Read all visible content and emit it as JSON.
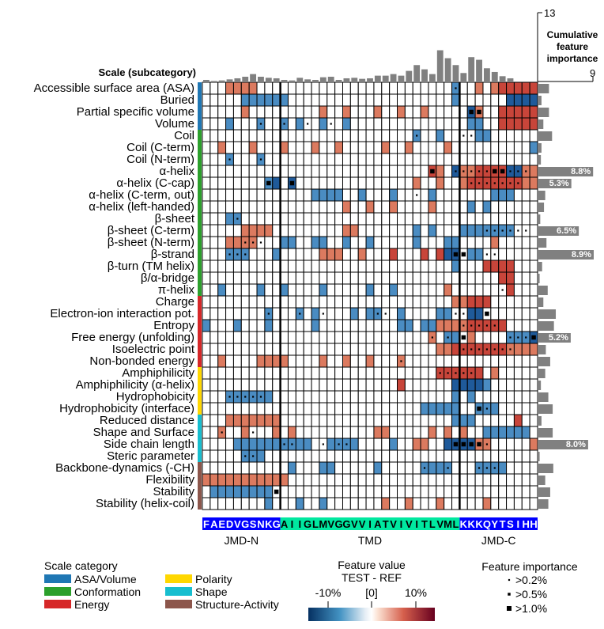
{
  "chart_data": {
    "type": "heatmap",
    "title": "",
    "scale_header": "Scale (subcategory)",
    "importance_axis": {
      "title_lines": [
        "Cumulative",
        "feature",
        "importance"
      ],
      "top_tick": "13",
      "bottom_tick": "9",
      "max": 13
    },
    "categories": [
      {
        "name": "ASA/Volume",
        "color": "#1f77b4"
      },
      {
        "name": "Conformation",
        "color": "#2ca02c"
      },
      {
        "name": "Energy",
        "color": "#d62728"
      },
      {
        "name": "Polarity",
        "color": "#ffd700"
      },
      {
        "name": "Shape",
        "color": "#17becf"
      },
      {
        "name": "Structure-Activity",
        "color": "#8c564b"
      }
    ],
    "rows": [
      {
        "label": "Accessible surface area (ASA)",
        "cat": 0,
        "imp": 1.7,
        "imp_label": "",
        "cells": "...PPPP.........................B..P.PRRRRRX..PR.",
        "marks": "................................1..........111111.."
      },
      {
        "label": "Buried",
        "cat": 0,
        "imp": 0.5,
        "imp_label": "",
        "cells": ".....BBBBBB.....................B......XXXXXXB..B.",
        "marks": ".................................................."
      },
      {
        "label": "Partial specific volume",
        "cat": 0,
        "imp": 1.7,
        "imp_label": "",
        "cells": ".....P.........P..P...P..P..P.....XP..RRRRR.......",
        "marks": "..................................33............."
      },
      {
        "label": "Volume",
        "cat": 0,
        "imp": 0.8,
        "imp_label": "",
        "cells": "...B...B..B.B..B..B...............BB..RRRRR.......",
        "marks": ".......1..1..1..1................................."
      },
      {
        "label": "Coil",
        "cat": 1,
        "imp": 2.2,
        "imp_label": "",
        "cells": "...........................B..B....BB.............",
        "marks": "...........................1.....11..............."
      },
      {
        "label": "Coil (C-term)",
        "cat": 1,
        "imp": 0.5,
        "imp_label": "",
        "cells": "..P...P...P...P..P.....P..P....P..........B...B...B.",
        "marks": ".................................................."
      },
      {
        "label": "Coil (N-term)",
        "cat": 1,
        "imp": 0.4,
        "imp_label": "",
        "cells": "...B...B.........................................",
        "marks": "...1...1.........................................."
      },
      {
        "label": "α-helix",
        "cat": 1,
        "imp": 8.8,
        "imp_label": "8.8%",
        "cells": ".............................RP.XPPRRRRXXPP.......",
        "marks": ".............................3..1111133111........"
      },
      {
        "label": "α-helix (C-cap)",
        "cat": 1,
        "imp": 5.3,
        "imp_label": "5.3%",
        "cells": "........BX.X...............P..P..PRRRRRRRPPPPP.....",
        "marks": "........3..3......................1111111.......1.."
      },
      {
        "label": "α-helix (C-term, out)",
        "cat": 1,
        "imp": 1.1,
        "imp_label": "",
        "cells": "..............BBBB..B...B....B.......BBB..........",
        "marks": "...........................1......................"
      },
      {
        "label": "α-helix (left-handed)",
        "cat": 1,
        "imp": 0.9,
        "imp_label": "",
        "cells": "..................P..P..P....P....B.B...........",
        "marks": ".................................................."
      },
      {
        "label": "β-sheet",
        "cat": 1,
        "imp": 0.3,
        "imp_label": "",
        "cells": "...BB.............................................",
        "marks": "....1............................................."
      },
      {
        "label": "β-sheet (C-term)",
        "cat": 1,
        "imp": 6.5,
        "imp_label": "6.5%",
        "cells": ".....PPPP.........PP.......B.B...BBBBBBB..........",
        "marks": "....................................111111........"
      },
      {
        "label": "β-sheet (N-term)",
        "cat": 1,
        "imp": 1.3,
        "imp_label": "",
        "cells": "...PPPP...BB..BB..B..B.....B...BB....P.........",
        "marks": ".....111........................................."
      },
      {
        "label": "β-strand",
        "cat": 1,
        "imp": 8.9,
        "imp_label": "8.9%",
        "cells": "...BBB...B.....PPP..P...R...R.RXX.BB.........",
        "marks": "...111..........................33..11............"
      },
      {
        "label": "β-turn (TM helix)",
        "cat": 1,
        "imp": 0.6,
        "imp_label": "",
        "cells": "................................B...RRRR.....P...",
        "marks": ".............................................1...."
      },
      {
        "label": "β/α-bridge",
        "cat": 1,
        "imp": 0.2,
        "imp_label": "",
        "cells": "......................................RR........",
        "marks": ".................................................."
      },
      {
        "label": "π-helix",
        "cat": 1,
        "imp": 1.5,
        "imp_label": "",
        "cells": "..B....B..B....B.....B..B......P.......R..........",
        "marks": "......................................1..........."
      },
      {
        "label": "Charge",
        "cat": 2,
        "imp": 0.8,
        "imp_label": "",
        "cells": "................................PPRRR........",
        "marks": ".................................................."
      },
      {
        "label": "Electron-ion interaction pot.",
        "cat": 2,
        "imp": 2.8,
        "imp_label": "",
        "cells": "........B...B.B....B.BB..B....BB..XX..............",
        "marks": "........1...1..1......11........11..3.............."
      },
      {
        "label": "Entropy",
        "cat": 2,
        "imp": 2.5,
        "imp_label": "",
        "cells": "B...B...B.....B..........BB.BBPPPPRRRRR..........",
        "marks": ".................................11111............."
      },
      {
        "label": "Free energy (unfolding)",
        "cat": 2,
        "imp": 5.2,
        "imp_label": "5.2%",
        "cells": ".............................P.BB.P....BBBXB.....",
        "marks": ".............................1.1.3.....11131....."
      },
      {
        "label": "Isoelectric point",
        "cat": 2,
        "imp": 1.2,
        "imp_label": "",
        "cells": "..............................PPRRRRRRRPPPP.....",
        "marks": ".................................1111111........."
      },
      {
        "label": "Non-bonded energy",
        "cat": 2,
        "imp": 1.9,
        "imp_label": "",
        "cells": "..P....PPPP....P..P..P...P........................",
        "marks": ".........................1.........................."
      },
      {
        "label": "Amphiphilicity",
        "cat": 3,
        "imp": 1.1,
        "imp_label": "",
        "cells": "..............................RRRRRR.P.........",
        "marks": "..............................11111.............."
      },
      {
        "label": "Amphiphilicity (α-helix)",
        "cat": 3,
        "imp": 0.4,
        "imp_label": "",
        "cells": ".........................R......XXXXB.........",
        "marks": ".................................................."
      },
      {
        "label": "Hydrophobicity",
        "cat": 3,
        "imp": 1.6,
        "imp_label": "",
        "cells": "...BBBBBB.......................B.B........B...",
        "marks": "...11111......................................."
      },
      {
        "label": "Hydrophobicity (interface)",
        "cat": 3,
        "imp": 2.3,
        "imp_label": "",
        "cells": "............................BBBBB..BBB.......B...",
        "marks": "...................................31............."
      },
      {
        "label": "Reduced distance",
        "cat": 4,
        "imp": 0.5,
        "imp_label": "",
        "cells": "...PPPPPPP......................BBB.....R........",
        "marks": ".................................................."
      },
      {
        "label": "Shape and Surface",
        "cat": 4,
        "imp": 2.3,
        "imp_label": "",
        "cells": "..P..P...P.P..........PP.....P.P.P..BBBBBB......",
        "marks": "..1...1..........................................."
      },
      {
        "label": "Side chain length",
        "cat": 4,
        "imp": 8.0,
        "imp_label": "8.0%",
        "cells": "....BBBBBBBBBB..BBBB....B..PP..XXXXPP.....P....",
        "marks": "..........11...1.11.............33331............."
      },
      {
        "label": "Steric parameter",
        "cat": 4,
        "imp": 0.2,
        "imp_label": "",
        "cells": ".....BBB..........................................",
        "marks": ".....11..........................................."
      },
      {
        "label": "Backbone-dynamics (-CH)",
        "cat": 5,
        "imp": 2.4,
        "imp_label": "",
        "cells": "...........B...BB.....B.....BBBB...BBBB.......",
        "marks": "............................1..1...111............"
      },
      {
        "label": "Flexibility",
        "cat": 5,
        "imp": 1.1,
        "imp_label": "",
        "cells": "PPPPPPPPPPP.......................................",
        "marks": ".................................................."
      },
      {
        "label": "Stability",
        "cat": 5,
        "imp": 1.9,
        "imp_label": "",
        "cells": ".BBBBBBBB.......................................",
        "marks": ".........3......................................."
      },
      {
        "label": "Stability (helix-coil)",
        "cat": 5,
        "imp": 1.6,
        "imp_label": "",
        "cells": "........B...B..B.......P..P...P.....P...........",
        "marks": "............................................"
      }
    ],
    "top_importance": [
      0.3,
      0.1,
      0.2,
      0.4,
      0.6,
      0.9,
      1.4,
      0.9,
      0.7,
      0.6,
      0.3,
      0.2,
      0.7,
      0.4,
      0.3,
      0.8,
      0.9,
      0.3,
      0.6,
      0.7,
      0.5,
      0.6,
      1.1,
      1.1,
      1.4,
      1.1,
      2.0,
      3.1,
      2.3,
      1.4,
      5.9,
      4.4,
      3.1,
      1.6,
      4.6,
      4.1,
      2.5,
      1.8,
      1.0,
      0.6
    ],
    "sequence": "FAEDVGSNKGAIIGLMVGGVVIATVIVITLVMLKKKQYTSIHH",
    "segments": [
      {
        "name": "JMD-N",
        "len": 10,
        "color": "#0000ff"
      },
      {
        "name": "TMD",
        "len": 23,
        "color": "#00e8a0"
      },
      {
        "name": "JMD-C",
        "len": 10,
        "color": "#0000ff"
      }
    ],
    "legend_category_title": "Scale category",
    "colorbar": {
      "title": "Feature value",
      "subtitle": "TEST - REF",
      "ticks": [
        "-10%",
        "[0]",
        "10%"
      ]
    },
    "importance_legend": {
      "title": "Feature importance",
      "items": [
        ">0.2%",
        ">0.5%",
        ">1.0%"
      ]
    }
  }
}
